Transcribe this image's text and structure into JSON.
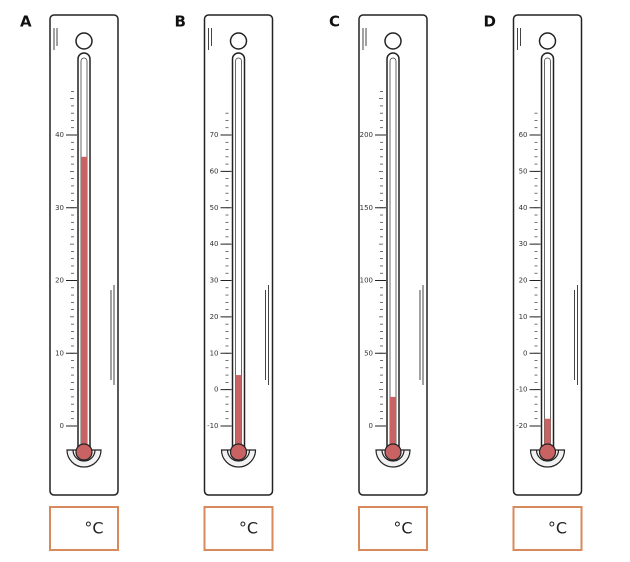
{
  "thermometers": [
    {
      "label": "A",
      "ticks": [
        0,
        10,
        20,
        30,
        40
      ],
      "reading": 37,
      "unit": "°C"
    },
    {
      "label": "B",
      "ticks": [
        -10,
        0,
        10,
        20,
        30,
        40,
        50,
        60,
        70
      ],
      "reading": 4,
      "unit": "°C"
    },
    {
      "label": "C",
      "ticks": [
        0,
        50,
        100,
        150,
        200
      ],
      "reading": 20,
      "unit": "°C"
    },
    {
      "label": "D",
      "ticks": [
        -20,
        -10,
        0,
        10,
        20,
        30,
        40,
        50,
        60
      ],
      "reading": -18,
      "unit": "°C"
    }
  ]
}
